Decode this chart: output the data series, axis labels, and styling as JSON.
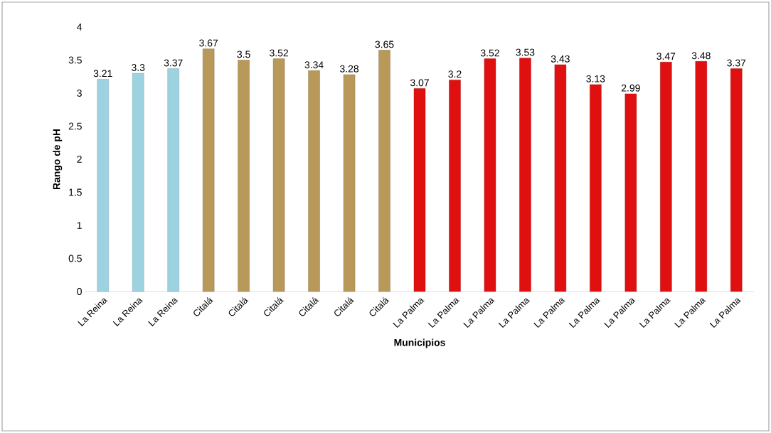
{
  "chart_data": {
    "type": "bar",
    "xlabel": "Municipios",
    "ylabel": "Rango de pH",
    "categories": [
      "La Reina",
      "La Reina",
      "La Reina",
      "Citalá",
      "Citalá",
      "Citalá",
      "Citalá",
      "Citalá",
      "Citalá",
      "La Palma",
      "La Palma",
      "La Palma",
      "La Palma",
      "La Palma",
      "La Palma",
      "La Palma",
      "La Palma",
      "La Palma",
      "La Palma"
    ],
    "values": [
      3.21,
      3.3,
      3.37,
      3.67,
      3.5,
      3.52,
      3.34,
      3.28,
      3.65,
      3.07,
      3.2,
      3.52,
      3.53,
      3.43,
      3.13,
      2.99,
      3.47,
      3.48,
      3.37
    ],
    "colors": [
      "#9dd3e0",
      "#9dd3e0",
      "#9dd3e0",
      "#b8995a",
      "#b8995a",
      "#b8995a",
      "#b8995a",
      "#b8995a",
      "#b8995a",
      "#e01010",
      "#e01010",
      "#e01010",
      "#e01010",
      "#e01010",
      "#e01010",
      "#e01010",
      "#e01010",
      "#e01010",
      "#e01010"
    ],
    "ylim": [
      0,
      4
    ],
    "yticks": [
      0,
      0.5,
      1,
      1.5,
      2,
      2.5,
      3,
      3.5,
      4
    ],
    "data_labels": true,
    "grid": false
  }
}
